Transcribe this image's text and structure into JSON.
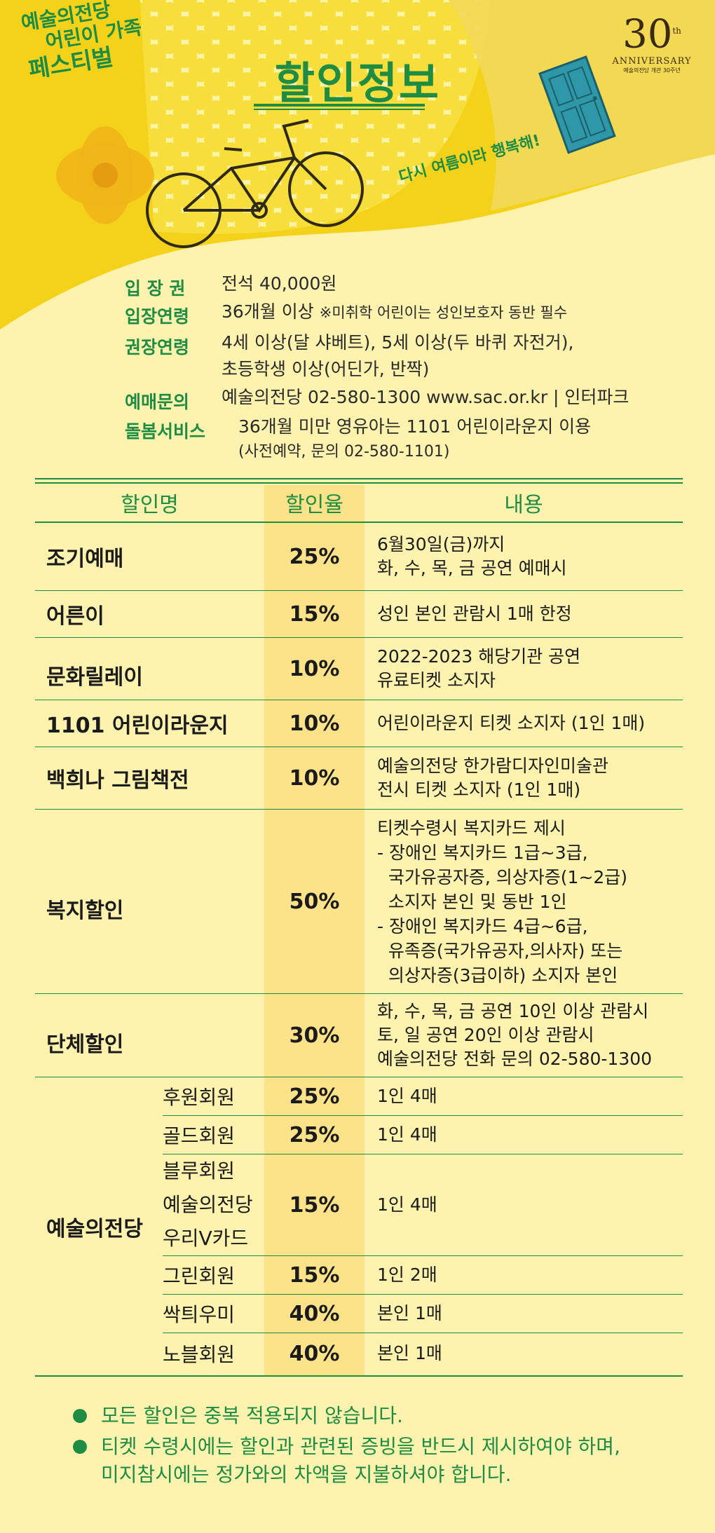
{
  "header": {
    "logo_lines": [
      "예술의전당",
      "어린이 가족",
      "페스티벌"
    ],
    "title": "할인정보",
    "anniversary_number": "30",
    "anniversary_sup": "th",
    "anniversary_word": "ANNIVERSARY",
    "anniversary_sub": "예술의전당 개관 30주년",
    "slogan": "다시 여름이라 행복해!"
  },
  "info": {
    "admission_label": "입 장 권",
    "admission_value": "전석 40,000원",
    "age_label": "입장연령",
    "age_value": "36개월 이상",
    "age_note": "※미취학 어린이는 성인보호자 동반 필수",
    "recommended_label": "권장연령",
    "recommended_value_1": "4세 이상(달 샤베트), 5세 이상(두 바퀴 자전거),",
    "recommended_value_2": "초등학생 이상(어딘가, 반짝)",
    "booking_label": "예매문의",
    "booking_value": "예술의전당 02-580-1300 www.sac.or.kr | 인터파크",
    "care_label": "돌봄서비스",
    "care_value_1": "36개월 미만 영유아는 1101 어린이라운지 이용",
    "care_value_2": "(사전예약, 문의 02-580-1101)"
  },
  "table": {
    "headers": [
      "할인명",
      "할인율",
      "내용"
    ],
    "rows": [
      {
        "name": "조기예매",
        "rate": "25%",
        "desc": "6월30일(금)까지\n화, 수, 목, 금 공연 예매시"
      },
      {
        "name": "어른이",
        "rate": "15%",
        "desc": "성인 본인 관람시 1매 한정"
      },
      {
        "name": "문화릴레이",
        "rate": "10%",
        "desc": "2022-2023 해당기관 공연\n유료티켓 소지자"
      },
      {
        "name": "1101 어린이라운지",
        "rate": "10%",
        "desc": "어린이라운지 티켓 소지자 (1인 1매)"
      },
      {
        "name": "백희나 그림책전",
        "rate": "10%",
        "desc": "예술의전당 한가람디자인미술관\n전시 티켓 소지자 (1인 1매)"
      },
      {
        "name": "복지할인",
        "rate": "50%",
        "desc": "티켓수령시 복지카드 제시\n- 장애인 복지카드 1급~3급,\n  국가유공자증, 의상자증(1~2급)\n  소지자 본인 및 동반 1인\n- 장애인 복지카드 4급~6급,\n  유족증(국가유공자,의사자) 또는\n  의상자증(3급이하) 소지자 본인"
      },
      {
        "name": "단체할인",
        "rate": "30%",
        "desc": "화, 수, 목, 금 공연 10인 이상 관람시\n토, 일 공연 20인 이상 관람시\n예술의전당 전화 문의 02-580-1300"
      }
    ],
    "group_name": "예술의전당",
    "group_rows": [
      {
        "sub": "후원회원",
        "rate": "25%",
        "desc": "1인 4매"
      },
      {
        "sub": "골드회원",
        "rate": "25%",
        "desc": "1인 4매"
      },
      {
        "sub": "블루회원\n예술의전당\n우리V카드",
        "rate": "15%",
        "desc": "1인 4매"
      },
      {
        "sub": "그린회원",
        "rate": "15%",
        "desc": "1인 2매"
      },
      {
        "sub": "싹틔우미",
        "rate": "40%",
        "desc": "본인 1매"
      },
      {
        "sub": "노블회원",
        "rate": "40%",
        "desc": "본인 1매"
      }
    ]
  },
  "notes": [
    "모든 할인은 중복 적용되지 않습니다.",
    "티켓 수령시에는 할인과 관련된 증빙을 반드시 제시하여야 하며,",
    "미지참시에는 정가와의 차액을 지불하셔야 합니다."
  ],
  "colors": {
    "accent": "#1f8c44",
    "background": "#fdf2ae",
    "rate_column": "#fce389",
    "header_yellow": "#f5d21a"
  }
}
